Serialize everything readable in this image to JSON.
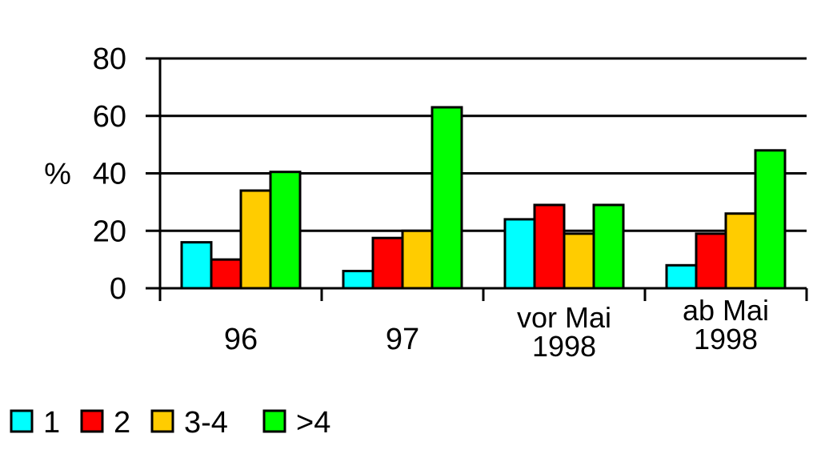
{
  "chart_data": {
    "type": "bar",
    "ylabel": "%",
    "ylim": [
      0,
      80
    ],
    "yticks": [
      0,
      20,
      40,
      60,
      80
    ],
    "grid": true,
    "categories": [
      [
        "96"
      ],
      [
        "97"
      ],
      [
        "vor Mai",
        "1998"
      ],
      [
        "ab Mai",
        "1998"
      ]
    ],
    "series": [
      {
        "name": "1",
        "color": "#00FFFF",
        "values": [
          16,
          6,
          24,
          8
        ]
      },
      {
        "name": "2",
        "color": "#FF0000",
        "values": [
          10,
          17.5,
          29,
          19
        ]
      },
      {
        "name": "3-4",
        "color": "#FFCC00",
        "values": [
          34,
          20,
          19,
          26
        ]
      },
      {
        "name": ">4",
        "color": "#00FF00",
        "values": [
          40.5,
          63,
          29,
          48
        ]
      }
    ],
    "legend_position": "bottom-left"
  }
}
